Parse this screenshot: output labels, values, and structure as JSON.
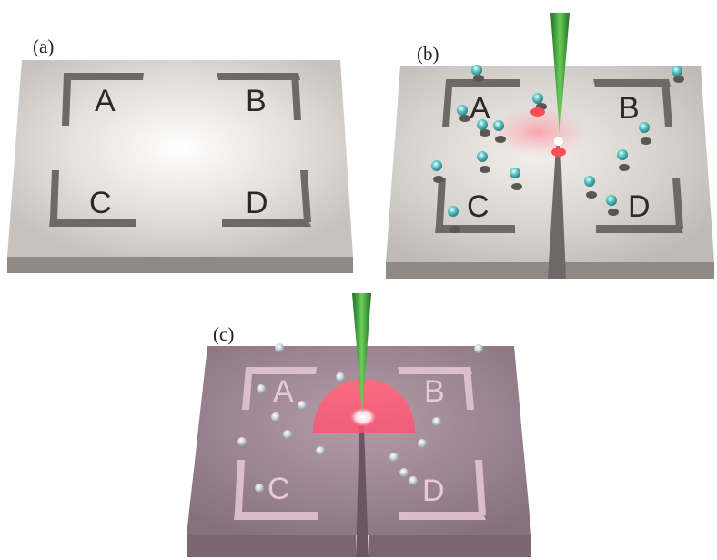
{
  "panels": {
    "a": {
      "label": "(a)",
      "regions": [
        "A",
        "B",
        "C",
        "D"
      ]
    },
    "b": {
      "label": "(b)",
      "regions": [
        "A",
        "B",
        "C",
        "D"
      ]
    },
    "c": {
      "label": "(c)",
      "regions": [
        "A",
        "B",
        "C",
        "D"
      ]
    }
  },
  "colors": {
    "plate_gray_top": "#d8d4cf",
    "plate_gray_side": "#8f8a86",
    "plate_pink_top": "#9c8590",
    "plate_pink_side": "#7a6570",
    "bracket_pink": "#e8c8dc",
    "probe_green": "#3a9a3a",
    "particle_teal": "#5ec8c8",
    "laser_red": "#ff5060"
  }
}
